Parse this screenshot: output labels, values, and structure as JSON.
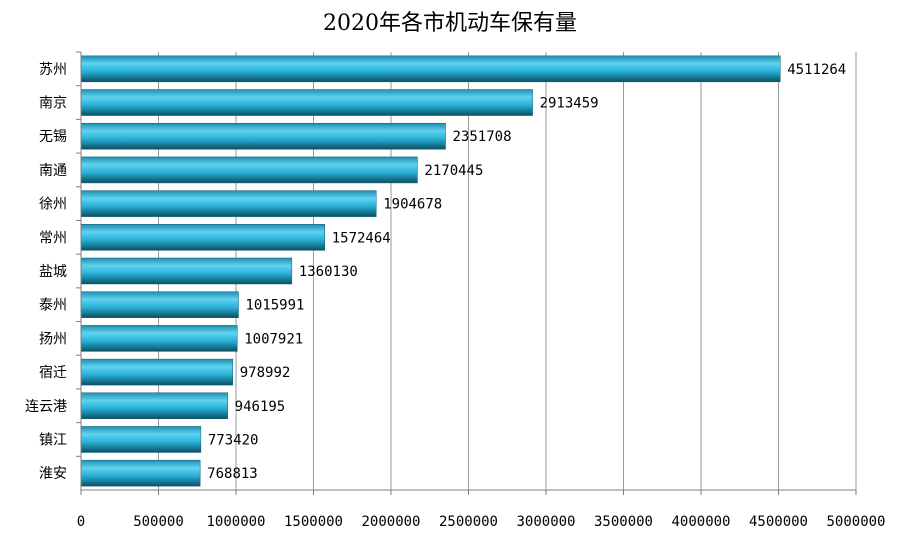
{
  "chart_data": {
    "type": "bar",
    "orientation": "horizontal",
    "title": "2020年各市机动车保有量",
    "categories": [
      "苏州",
      "南京",
      "无锡",
      "南通",
      "徐州",
      "常州",
      "盐城",
      "泰州",
      "扬州",
      "宿迁",
      "连云港",
      "镇江",
      "淮安"
    ],
    "values": [
      4511264,
      2913459,
      2351708,
      2170445,
      1904678,
      1572464,
      1360130,
      1015991,
      1007921,
      978992,
      946195,
      773420,
      768813
    ],
    "xlim": [
      0,
      5000000
    ],
    "xticks": [
      0,
      500000,
      1000000,
      1500000,
      2000000,
      2500000,
      3000000,
      3500000,
      4000000,
      4500000,
      5000000
    ],
    "grid": true,
    "legend": "none",
    "colors": {
      "bar_light": "#5fd3f0",
      "bar_mid": "#27b1d6",
      "bar_dark": "#0b4f63",
      "grid": "#9a9a9a",
      "axis": "#7f7f7f"
    }
  }
}
